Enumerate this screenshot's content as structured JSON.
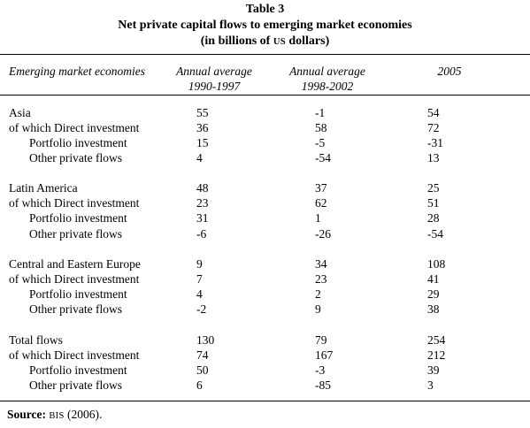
{
  "title": {
    "line1": "Table 3",
    "line2": "Net private capital flows to emerging market economies",
    "line3_prefix": "(in billions of ",
    "line3_smallcaps": "US",
    "line3_suffix": " dollars)"
  },
  "columns": {
    "label": "Emerging market economies",
    "c1_line1": "Annual average",
    "c1_line2": "1990-1997",
    "c2_line1": "Annual average",
    "c2_line2": "1998-2002",
    "c3": "2005"
  },
  "rows": [
    {
      "label": "Asia",
      "v1": "55",
      "v2": "-1",
      "v3": "54"
    },
    {
      "label": "of which Direct investment",
      "v1": "36",
      "v2": "58",
      "v3": "72"
    },
    {
      "label": "Portfolio investment",
      "v1": "15",
      "v2": "-5",
      "v3": "-31"
    },
    {
      "label": "Other private flows",
      "v1": "4",
      "v2": "-54",
      "v3": "13"
    },
    {
      "label": "Latin America",
      "v1": "48",
      "v2": "37",
      "v3": "25"
    },
    {
      "label": "of which Direct investment",
      "v1": "23",
      "v2": "62",
      "v3": "51"
    },
    {
      "label": "Portfolio investment",
      "v1": "31",
      "v2": "1",
      "v3": "28"
    },
    {
      "label": "Other private flows",
      "v1": "-6",
      "v2": "-26",
      "v3": "-54"
    },
    {
      "label": "Central and Eastern Europe",
      "v1": "9",
      "v2": "34",
      "v3": "108"
    },
    {
      "label": "of which Direct investment",
      "v1": "7",
      "v2": "23",
      "v3": "41"
    },
    {
      "label": "Portfolio investment",
      "v1": "4",
      "v2": "2",
      "v3": "29"
    },
    {
      "label": "Other private flows",
      "v1": "-2",
      "v2": "9",
      "v3": "38"
    },
    {
      "label": "Total flows",
      "v1": "130",
      "v2": "79",
      "v3": "254"
    },
    {
      "label": "of which Direct investment",
      "v1": "74",
      "v2": "167",
      "v3": "212"
    },
    {
      "label": "Portfolio investment",
      "v1": "50",
      "v2": "-3",
      "v3": "39"
    },
    {
      "label": "Other private flows",
      "v1": "6",
      "v2": "-85",
      "v3": "3"
    }
  ],
  "source": {
    "label": "Source:",
    "org": "BIS",
    "year": " (2006)."
  }
}
